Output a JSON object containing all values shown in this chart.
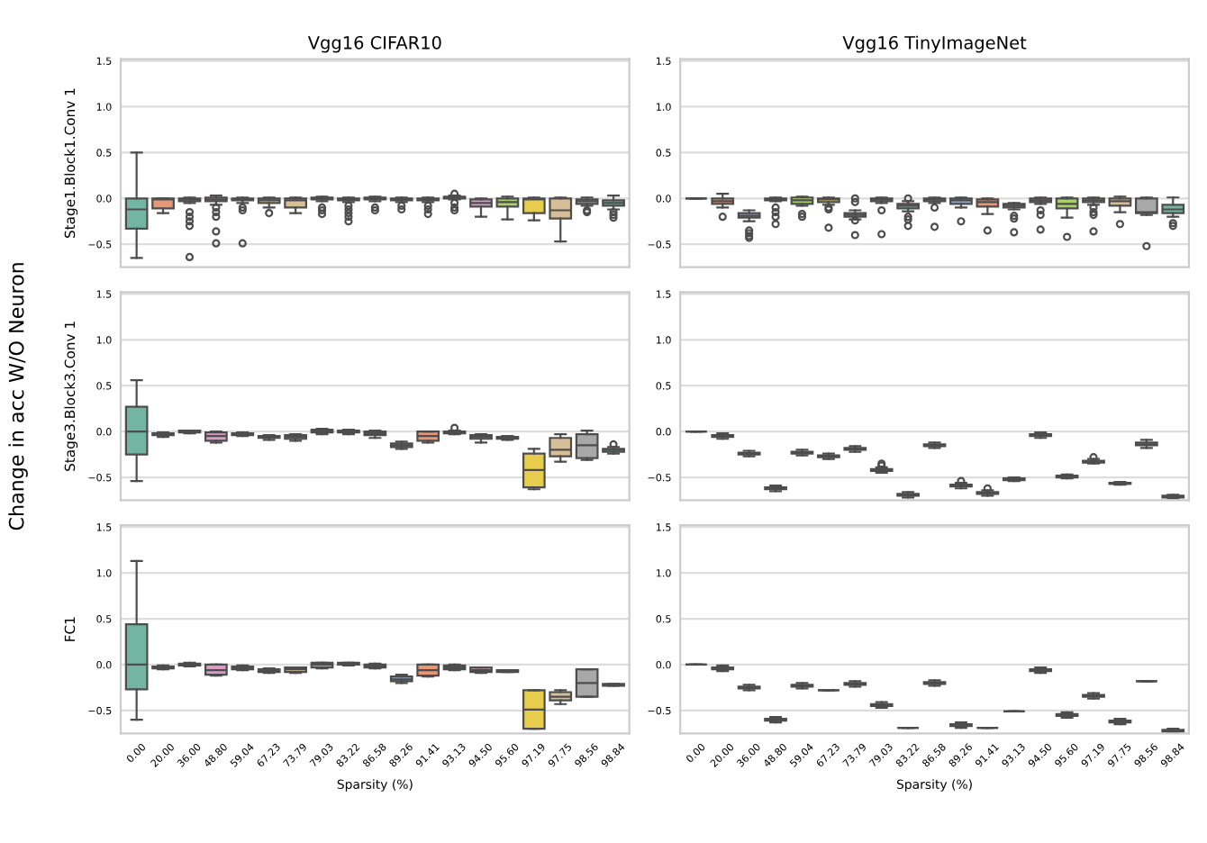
{
  "chart_data": [
    {
      "type": "box",
      "title": "Vgg16 CIFAR10",
      "ylabel": "Stage1.Block1.Conv 1",
      "annotations": [
        "Change in acc W/O Neuron"
      ],
      "tick_labels": "y",
      "grid": "y",
      "categories": [
        "0.00",
        "20.00",
        "36.00",
        "48.80",
        "59.04",
        "67.23",
        "73.79",
        "79.03",
        "83.22",
        "86.58",
        "89.26",
        "91.41",
        "93.13",
        "94.50",
        "95.60",
        "97.19",
        "97.75",
        "98.56",
        "98.84"
      ],
      "colors": [
        "#72b6a1",
        "#e99675",
        "#95a3c3",
        "#d79dc5",
        "#a9cf6a",
        "#e7cd4c",
        "#d6bf96",
        "#a8a8a8",
        "#72b6a1",
        "#e99675",
        "#95a3c3",
        "#e99675",
        "#95a3c3",
        "#d79dc5",
        "#a9cf6a",
        "#e7cd4c",
        "#d6bf96",
        "#a8a8a8",
        "#72b6a1"
      ],
      "ylim": [
        -0.75,
        1.52
      ],
      "yticks": [
        {
          "value": -0.5,
          "label": "−0.5"
        },
        {
          "value": 0,
          "label": "0.0"
        },
        {
          "value": 0.5,
          "label": "0.5"
        },
        {
          "value": 1,
          "label": "1.0"
        },
        {
          "value": 1.5,
          "label": "1.5"
        }
      ],
      "boxes": [
        {
          "low": -0.65,
          "q1": -0.33,
          "median": -0.12,
          "q3": 0,
          "high": 0.5
        },
        {
          "low": -0.16,
          "q1": -0.11,
          "median": -0.01,
          "q3": 0,
          "high": 0
        },
        {
          "low": -0.05,
          "q1": -0.03,
          "median": -0.01,
          "q3": 0,
          "high": 0.01,
          "outliers": [
            -0.15,
            -0.2,
            -0.25,
            -0.3,
            -0.64
          ]
        },
        {
          "low": -0.07,
          "q1": -0.03,
          "median": -0.01,
          "q3": 0.01,
          "high": 0.03,
          "outliers": [
            -0.1,
            -0.15,
            -0.2,
            -0.36,
            -0.49
          ]
        },
        {
          "low": -0.05,
          "q1": -0.02,
          "median": -0.01,
          "q3": 0,
          "high": 0.01,
          "outliers": [
            -0.1,
            -0.13,
            -0.49
          ]
        },
        {
          "low": -0.1,
          "q1": -0.05,
          "median": -0.02,
          "q3": 0,
          "high": 0.01,
          "outliers": [
            -0.16
          ]
        },
        {
          "low": -0.16,
          "q1": -0.1,
          "median": -0.02,
          "q3": 0,
          "high": 0.01
        },
        {
          "low": -0.03,
          "q1": -0.01,
          "median": 0,
          "q3": 0.01,
          "high": 0.02,
          "outliers": [
            -0.1,
            -0.13,
            -0.17
          ]
        },
        {
          "low": -0.04,
          "q1": -0.02,
          "median": -0.01,
          "q3": 0,
          "high": 0.01,
          "outliers": [
            -0.08,
            -0.12,
            -0.16,
            -0.2,
            -0.25
          ]
        },
        {
          "low": -0.03,
          "q1": -0.01,
          "median": 0,
          "q3": 0.01,
          "high": 0.02,
          "outliers": [
            -0.1,
            -0.13
          ]
        },
        {
          "low": -0.04,
          "q1": -0.02,
          "median": -0.01,
          "q3": 0,
          "high": 0.01,
          "outliers": [
            -0.08,
            -0.12
          ]
        },
        {
          "low": -0.04,
          "q1": -0.02,
          "median": -0.01,
          "q3": 0,
          "high": 0.01,
          "outliers": [
            -0.08,
            -0.12,
            -0.17
          ]
        },
        {
          "low": -0.01,
          "q1": 0,
          "median": 0.01,
          "q3": 0.02,
          "high": 0.03,
          "outliers": [
            0.05,
            -0.05,
            -0.1,
            -0.13
          ]
        },
        {
          "low": -0.2,
          "q1": -0.09,
          "median": -0.05,
          "q3": -0.01,
          "high": 0
        },
        {
          "low": -0.23,
          "q1": -0.09,
          "median": -0.04,
          "q3": 0,
          "high": 0.02
        },
        {
          "low": -0.24,
          "q1": -0.16,
          "median": -0.01,
          "q3": 0,
          "high": 0.01
        },
        {
          "low": -0.47,
          "q1": -0.22,
          "median": -0.13,
          "q3": 0,
          "high": 0.01
        },
        {
          "low": -0.08,
          "q1": -0.06,
          "median": -0.03,
          "q3": -0.01,
          "high": 0.01,
          "outliers": [
            -0.13,
            -0.15
          ]
        },
        {
          "low": -0.12,
          "q1": -0.08,
          "median": -0.05,
          "q3": -0.02,
          "high": 0.03,
          "outliers": [
            -0.15,
            -0.18,
            -0.21
          ]
        }
      ]
    },
    {
      "type": "box",
      "title": "Vgg16 TinyImageNet",
      "tick_labels": "y",
      "grid": "y",
      "categories": [
        "0.00",
        "20.00",
        "36.00",
        "48.80",
        "59.04",
        "67.23",
        "73.79",
        "79.03",
        "83.22",
        "86.58",
        "89.26",
        "91.41",
        "93.13",
        "94.50",
        "95.60",
        "97.19",
        "97.75",
        "98.56",
        "98.84"
      ],
      "colors": [
        "#4d4d4d",
        "#e99675",
        "#95a3c3",
        "#d79dc5",
        "#a9cf6a",
        "#e7cd4c",
        "#d6bf96",
        "#a8a8a8",
        "#72b6a1",
        "#e99675",
        "#95a3c3",
        "#e99675",
        "#95a3c3",
        "#d79dc5",
        "#a9cf6a",
        "#e7cd4c",
        "#d6bf96",
        "#a8a8a8",
        "#72b6a1"
      ],
      "ylim": [
        -0.75,
        1.52
      ],
      "yticks": [
        {
          "value": -0.5,
          "label": "−0.5"
        },
        {
          "value": 0,
          "label": "0.0"
        },
        {
          "value": 0.5,
          "label": "0.5"
        },
        {
          "value": 1,
          "label": "1.0"
        },
        {
          "value": 1.5,
          "label": "1.5"
        }
      ],
      "boxes": [
        {
          "low": 0,
          "q1": 0,
          "median": 0,
          "q3": 0,
          "high": 0
        },
        {
          "low": -0.1,
          "q1": -0.06,
          "median": -0.03,
          "q3": 0,
          "high": 0.05,
          "outliers": [
            -0.2
          ]
        },
        {
          "low": -0.25,
          "q1": -0.21,
          "median": -0.19,
          "q3": -0.16,
          "high": -0.13,
          "outliers": [
            -0.35,
            -0.38,
            -0.41,
            -0.43
          ]
        },
        {
          "low": -0.03,
          "q1": -0.02,
          "median": -0.01,
          "q3": 0,
          "high": 0.01,
          "outliers": [
            -0.1,
            -0.15,
            -0.2,
            -0.28
          ]
        },
        {
          "low": -0.08,
          "q1": -0.06,
          "median": -0.02,
          "q3": 0.01,
          "high": 0.02,
          "outliers": [
            -0.17,
            -0.2
          ]
        },
        {
          "low": -0.07,
          "q1": -0.04,
          "median": -0.01,
          "q3": 0,
          "high": 0.01,
          "outliers": [
            -0.1,
            -0.12,
            -0.32
          ]
        },
        {
          "low": -0.23,
          "q1": -0.2,
          "median": -0.18,
          "q3": -0.16,
          "high": -0.13,
          "outliers": [
            0,
            -0.04,
            -0.24,
            -0.4
          ]
        },
        {
          "low": -0.05,
          "q1": -0.03,
          "median": -0.01,
          "q3": 0,
          "high": 0.01,
          "outliers": [
            -0.13,
            -0.39
          ]
        },
        {
          "low": -0.14,
          "q1": -0.11,
          "median": -0.08,
          "q3": -0.06,
          "high": -0.03,
          "outliers": [
            0,
            -0.2,
            -0.23,
            -0.3
          ]
        },
        {
          "low": -0.05,
          "q1": -0.03,
          "median": -0.01,
          "q3": 0,
          "high": 0.01,
          "outliers": [
            -0.1,
            -0.31
          ]
        },
        {
          "low": -0.1,
          "q1": -0.06,
          "median": -0.02,
          "q3": 0,
          "high": 0.01,
          "outliers": [
            -0.25
          ]
        },
        {
          "low": -0.17,
          "q1": -0.09,
          "median": -0.04,
          "q3": -0.01,
          "high": 0,
          "outliers": [
            -0.35
          ]
        },
        {
          "low": -0.12,
          "q1": -0.1,
          "median": -0.08,
          "q3": -0.06,
          "high": -0.05,
          "outliers": [
            -0.19,
            -0.22,
            -0.37
          ]
        },
        {
          "low": -0.06,
          "q1": -0.04,
          "median": -0.02,
          "q3": 0,
          "high": 0.01,
          "outliers": [
            -0.13,
            -0.18,
            -0.34
          ]
        },
        {
          "low": -0.21,
          "q1": -0.11,
          "median": -0.06,
          "q3": 0,
          "high": 0.01,
          "outliers": [
            -0.42
          ]
        },
        {
          "low": -0.07,
          "q1": -0.04,
          "median": -0.02,
          "q3": 0,
          "high": 0.01,
          "outliers": [
            -0.1,
            -0.15,
            -0.18,
            -0.36
          ]
        },
        {
          "low": -0.15,
          "q1": -0.08,
          "median": -0.03,
          "q3": 0,
          "high": 0.02,
          "outliers": [
            -0.28
          ]
        },
        {
          "low": -0.18,
          "q1": -0.16,
          "median": -0.15,
          "q3": 0,
          "high": 0.01,
          "outliers": [
            -0.52
          ]
        },
        {
          "low": -0.2,
          "q1": -0.16,
          "median": -0.12,
          "q3": -0.07,
          "high": 0.01,
          "outliers": [
            -0.27,
            -0.3
          ]
        }
      ]
    },
    {
      "type": "box",
      "ylabel": "Stage3.Block3.Conv 1",
      "tick_labels": "y",
      "grid": "y",
      "categories": [
        "0.00",
        "20.00",
        "36.00",
        "48.80",
        "59.04",
        "67.23",
        "73.79",
        "79.03",
        "83.22",
        "86.58",
        "89.26",
        "91.41",
        "93.13",
        "94.50",
        "95.60",
        "97.19",
        "97.75",
        "98.56",
        "98.84"
      ],
      "colors": [
        "#72b6a1",
        "#e99675",
        "#95a3c3",
        "#d79dc5",
        "#a9cf6a",
        "#e7cd4c",
        "#d6bf96",
        "#a8a8a8",
        "#72b6a1",
        "#e99675",
        "#95a3c3",
        "#e99675",
        "#95a3c3",
        "#d79dc5",
        "#a9cf6a",
        "#e7cd4c",
        "#d6bf96",
        "#a8a8a8",
        "#72b6a1"
      ],
      "ylim": [
        -0.75,
        1.52
      ],
      "yticks": [
        {
          "value": -0.5,
          "label": "−0.5"
        },
        {
          "value": 0,
          "label": "0.0"
        },
        {
          "value": 0.5,
          "label": "0.5"
        },
        {
          "value": 1,
          "label": "1.0"
        },
        {
          "value": 1.5,
          "label": "1.5"
        }
      ],
      "boxes": [
        {
          "low": -0.54,
          "q1": -0.25,
          "median": 0,
          "q3": 0.27,
          "high": 0.56
        },
        {
          "low": -0.06,
          "q1": -0.04,
          "median": -0.03,
          "q3": -0.02,
          "high": -0.01
        },
        {
          "low": -0.02,
          "q1": -0.01,
          "median": 0,
          "q3": 0.01,
          "high": 0.01
        },
        {
          "low": -0.12,
          "q1": -0.1,
          "median": -0.05,
          "q3": -0.01,
          "high": 0
        },
        {
          "low": -0.05,
          "q1": -0.04,
          "median": -0.03,
          "q3": -0.02,
          "high": -0.01
        },
        {
          "low": -0.09,
          "q1": -0.07,
          "median": -0.06,
          "q3": -0.05,
          "high": -0.04
        },
        {
          "low": -0.1,
          "q1": -0.08,
          "median": -0.06,
          "q3": -0.04,
          "high": -0.03
        },
        {
          "low": -0.03,
          "q1": -0.01,
          "median": 0,
          "q3": 0.02,
          "high": 0.03
        },
        {
          "low": -0.03,
          "q1": -0.01,
          "median": 0,
          "q3": 0.01,
          "high": 0.02
        },
        {
          "low": -0.07,
          "q1": -0.04,
          "median": -0.02,
          "q3": 0,
          "high": 0.01
        },
        {
          "low": -0.19,
          "q1": -0.17,
          "median": -0.15,
          "q3": -0.13,
          "high": -0.11
        },
        {
          "low": -0.12,
          "q1": -0.1,
          "median": -0.05,
          "q3": 0,
          "high": 0
        },
        {
          "low": -0.03,
          "q1": -0.02,
          "median": -0.01,
          "q3": 0,
          "high": 0.01,
          "outliers": [
            0.04
          ]
        },
        {
          "low": -0.12,
          "q1": -0.08,
          "median": -0.06,
          "q3": -0.04,
          "high": -0.03
        },
        {
          "low": -0.09,
          "q1": -0.08,
          "median": -0.07,
          "q3": -0.06,
          "high": -0.05
        },
        {
          "low": -0.63,
          "q1": -0.61,
          "median": -0.42,
          "q3": -0.24,
          "high": -0.19
        },
        {
          "low": -0.33,
          "q1": -0.27,
          "median": -0.2,
          "q3": -0.07,
          "high": -0.03
        },
        {
          "low": -0.31,
          "q1": -0.29,
          "median": -0.15,
          "q3": -0.03,
          "high": 0.01
        },
        {
          "low": -0.24,
          "q1": -0.22,
          "median": -0.2,
          "q3": -0.19,
          "high": -0.17,
          "outliers": [
            -0.14
          ]
        }
      ]
    },
    {
      "type": "box",
      "tick_labels": "y",
      "grid": "y",
      "categories": [
        "0.00",
        "20.00",
        "36.00",
        "48.80",
        "59.04",
        "67.23",
        "73.79",
        "79.03",
        "83.22",
        "86.58",
        "89.26",
        "91.41",
        "93.13",
        "94.50",
        "95.60",
        "97.19",
        "97.75",
        "98.56",
        "98.84"
      ],
      "colors": [
        "#4d4d4d",
        "#e99675",
        "#95a3c3",
        "#d79dc5",
        "#a9cf6a",
        "#e7cd4c",
        "#d6bf96",
        "#a8a8a8",
        "#72b6a1",
        "#e99675",
        "#95a3c3",
        "#e99675",
        "#95a3c3",
        "#d79dc5",
        "#a9cf6a",
        "#e7cd4c",
        "#d6bf96",
        "#a8a8a8",
        "#72b6a1"
      ],
      "ylim": [
        -0.75,
        1.52
      ],
      "yticks": [
        {
          "value": -0.5,
          "label": "−0.5"
        },
        {
          "value": 0,
          "label": "0.0"
        },
        {
          "value": 0.5,
          "label": "0.5"
        },
        {
          "value": 1,
          "label": "1.0"
        },
        {
          "value": 1.5,
          "label": "1.5"
        }
      ],
      "boxes": [
        {
          "low": 0,
          "q1": 0,
          "median": 0,
          "q3": 0,
          "high": 0
        },
        {
          "low": -0.08,
          "q1": -0.06,
          "median": -0.05,
          "q3": -0.04,
          "high": -0.02
        },
        {
          "low": -0.27,
          "q1": -0.25,
          "median": -0.24,
          "q3": -0.23,
          "high": -0.21
        },
        {
          "low": -0.65,
          "q1": -0.63,
          "median": -0.62,
          "q3": -0.61,
          "high": -0.59
        },
        {
          "low": -0.26,
          "q1": -0.24,
          "median": -0.23,
          "q3": -0.22,
          "high": -0.2
        },
        {
          "low": -0.3,
          "q1": -0.28,
          "median": -0.27,
          "q3": -0.26,
          "high": -0.24
        },
        {
          "low": -0.22,
          "q1": -0.2,
          "median": -0.19,
          "q3": -0.18,
          "high": -0.16
        },
        {
          "low": -0.45,
          "q1": -0.43,
          "median": -0.42,
          "q3": -0.41,
          "high": -0.39,
          "outliers": [
            -0.35,
            -0.37
          ]
        },
        {
          "low": -0.72,
          "q1": -0.7,
          "median": -0.69,
          "q3": -0.68,
          "high": -0.66
        },
        {
          "low": -0.18,
          "q1": -0.16,
          "median": -0.15,
          "q3": -0.14,
          "high": -0.12
        },
        {
          "low": -0.62,
          "q1": -0.6,
          "median": -0.59,
          "q3": -0.58,
          "high": -0.56,
          "outliers": [
            -0.54
          ]
        },
        {
          "low": -0.7,
          "q1": -0.68,
          "median": -0.67,
          "q3": -0.66,
          "high": -0.64,
          "outliers": [
            -0.62
          ]
        },
        {
          "low": -0.54,
          "q1": -0.53,
          "median": -0.52,
          "q3": -0.51,
          "high": -0.5
        },
        {
          "low": -0.07,
          "q1": -0.05,
          "median": -0.04,
          "q3": -0.03,
          "high": -0.01
        },
        {
          "low": -0.51,
          "q1": -0.5,
          "median": -0.49,
          "q3": -0.48,
          "high": -0.47
        },
        {
          "low": -0.35,
          "q1": -0.34,
          "median": -0.33,
          "q3": -0.32,
          "high": -0.3,
          "outliers": [
            -0.28
          ]
        },
        {
          "low": -0.58,
          "q1": -0.57,
          "median": -0.57,
          "q3": -0.56,
          "high": -0.55
        },
        {
          "low": -0.18,
          "q1": -0.15,
          "median": -0.14,
          "q3": -0.12,
          "high": -0.09
        },
        {
          "low": -0.73,
          "q1": -0.72,
          "median": -0.71,
          "q3": -0.7,
          "high": -0.69
        }
      ]
    },
    {
      "type": "box",
      "ylabel": "FC1",
      "xlabel": "Sparsity (%)",
      "grid": "y",
      "categories": [
        "0.00",
        "20.00",
        "36.00",
        "48.80",
        "59.04",
        "67.23",
        "73.79",
        "79.03",
        "83.22",
        "86.58",
        "89.26",
        "91.41",
        "93.13",
        "94.50",
        "95.60",
        "97.19",
        "97.75",
        "98.56",
        "98.84"
      ],
      "colors": [
        "#72b6a1",
        "#e99675",
        "#95a3c3",
        "#d79dc5",
        "#a9cf6a",
        "#e7cd4c",
        "#d6bf96",
        "#a8a8a8",
        "#72b6a1",
        "#e99675",
        "#95a3c3",
        "#e99675",
        "#95a3c3",
        "#d79dc5",
        "#a9cf6a",
        "#e7cd4c",
        "#d6bf96",
        "#a8a8a8",
        "#72b6a1"
      ],
      "ylim": [
        -0.75,
        1.52
      ],
      "yticks": [
        {
          "value": -0.5,
          "label": "−0.5"
        },
        {
          "value": 0,
          "label": "0.0"
        },
        {
          "value": 0.5,
          "label": "0.5"
        },
        {
          "value": 1,
          "label": "1.0"
        },
        {
          "value": 1.5,
          "label": "1.5"
        }
      ],
      "boxes": [
        {
          "low": -0.6,
          "q1": -0.27,
          "median": 0,
          "q3": 0.44,
          "high": 1.13
        },
        {
          "low": -0.05,
          "q1": -0.04,
          "median": -0.03,
          "q3": -0.02,
          "high": -0.01
        },
        {
          "low": -0.02,
          "q1": -0.01,
          "median": 0,
          "q3": 0.01,
          "high": 0.02
        },
        {
          "low": -0.12,
          "q1": -0.11,
          "median": -0.06,
          "q3": 0,
          "high": 0
        },
        {
          "low": -0.06,
          "q1": -0.05,
          "median": -0.04,
          "q3": -0.02,
          "high": -0.01
        },
        {
          "low": -0.09,
          "q1": -0.08,
          "median": -0.06,
          "q3": -0.05,
          "high": -0.04
        },
        {
          "low": -0.09,
          "q1": -0.08,
          "median": -0.05,
          "q3": -0.03,
          "high": -0.03
        },
        {
          "low": -0.04,
          "q1": -0.03,
          "median": 0,
          "q3": 0.02,
          "high": 0.02
        },
        {
          "low": -0.01,
          "q1": 0,
          "median": 0.01,
          "q3": 0.02,
          "high": 0.02
        },
        {
          "low": -0.04,
          "q1": -0.03,
          "median": -0.01,
          "q3": 0,
          "high": 0.01
        },
        {
          "low": -0.2,
          "q1": -0.18,
          "median": -0.16,
          "q3": -0.13,
          "high": -0.11
        },
        {
          "low": -0.13,
          "q1": -0.12,
          "median": -0.06,
          "q3": 0,
          "high": 0
        },
        {
          "low": -0.06,
          "q1": -0.05,
          "median": -0.03,
          "q3": -0.01,
          "high": 0
        },
        {
          "low": -0.09,
          "q1": -0.08,
          "median": -0.06,
          "q3": -0.03,
          "high": -0.03
        },
        {
          "low": -0.08,
          "q1": -0.08,
          "median": -0.07,
          "q3": -0.06,
          "high": -0.06
        },
        {
          "low": -0.7,
          "q1": -0.7,
          "median": -0.49,
          "q3": -0.28,
          "high": -0.28
        },
        {
          "low": -0.43,
          "q1": -0.39,
          "median": -0.35,
          "q3": -0.3,
          "high": -0.28
        },
        {
          "low": -0.35,
          "q1": -0.35,
          "median": -0.2,
          "q3": -0.05,
          "high": -0.05
        },
        {
          "low": -0.23,
          "q1": -0.23,
          "median": -0.22,
          "q3": -0.21,
          "high": -0.21
        }
      ]
    },
    {
      "type": "box",
      "xlabel": "Sparsity (%)",
      "grid": "y",
      "categories": [
        "0.00",
        "20.00",
        "36.00",
        "48.80",
        "59.04",
        "67.23",
        "73.79",
        "79.03",
        "83.22",
        "86.58",
        "89.26",
        "91.41",
        "93.13",
        "94.50",
        "95.60",
        "97.19",
        "97.75",
        "98.56",
        "98.84"
      ],
      "colors": [
        "#4d4d4d",
        "#e99675",
        "#95a3c3",
        "#d79dc5",
        "#a9cf6a",
        "#4d4d4d",
        "#d6bf96",
        "#a8a8a8",
        "#4d4d4d",
        "#e99675",
        "#95a3c3",
        "#4d4d4d",
        "#4d4d4d",
        "#d79dc5",
        "#a9cf6a",
        "#e7cd4c",
        "#d6bf96",
        "#4d4d4d",
        "#72b6a1"
      ],
      "ylim": [
        -0.75,
        1.52
      ],
      "yticks": [
        {
          "value": -0.5,
          "label": "−0.5"
        },
        {
          "value": 0,
          "label": "0.0"
        },
        {
          "value": 0.5,
          "label": "0.5"
        },
        {
          "value": 1,
          "label": "1.0"
        },
        {
          "value": 1.5,
          "label": "1.5"
        }
      ],
      "boxes": [
        {
          "low": 0,
          "q1": 0,
          "median": 0,
          "q3": 0,
          "high": 0
        },
        {
          "low": -0.07,
          "q1": -0.05,
          "median": -0.04,
          "q3": -0.03,
          "high": -0.01
        },
        {
          "low": -0.28,
          "q1": -0.26,
          "median": -0.25,
          "q3": -0.24,
          "high": -0.22
        },
        {
          "low": -0.63,
          "q1": -0.61,
          "median": -0.6,
          "q3": -0.59,
          "high": -0.57
        },
        {
          "low": -0.26,
          "q1": -0.24,
          "median": -0.23,
          "q3": -0.22,
          "high": -0.2
        },
        {
          "low": -0.28,
          "q1": -0.28,
          "median": -0.28,
          "q3": -0.28,
          "high": -0.28
        },
        {
          "low": -0.24,
          "q1": -0.22,
          "median": -0.21,
          "q3": -0.2,
          "high": -0.18
        },
        {
          "low": -0.47,
          "q1": -0.45,
          "median": -0.44,
          "q3": -0.43,
          "high": -0.41
        },
        {
          "low": -0.69,
          "q1": -0.69,
          "median": -0.69,
          "q3": -0.69,
          "high": -0.69
        },
        {
          "low": -0.23,
          "q1": -0.21,
          "median": -0.2,
          "q3": -0.19,
          "high": -0.17
        },
        {
          "low": -0.69,
          "q1": -0.67,
          "median": -0.66,
          "q3": -0.65,
          "high": -0.63
        },
        {
          "low": -0.69,
          "q1": -0.69,
          "median": -0.69,
          "q3": -0.69,
          "high": -0.69
        },
        {
          "low": -0.51,
          "q1": -0.51,
          "median": -0.51,
          "q3": -0.51,
          "high": -0.51
        },
        {
          "low": -0.09,
          "q1": -0.07,
          "median": -0.06,
          "q3": -0.05,
          "high": -0.03
        },
        {
          "low": -0.58,
          "q1": -0.56,
          "median": -0.55,
          "q3": -0.54,
          "high": -0.52
        },
        {
          "low": -0.37,
          "q1": -0.35,
          "median": -0.34,
          "q3": -0.33,
          "high": -0.31
        },
        {
          "low": -0.65,
          "q1": -0.63,
          "median": -0.62,
          "q3": -0.61,
          "high": -0.59
        },
        {
          "low": -0.18,
          "q1": -0.18,
          "median": -0.18,
          "q3": -0.18,
          "high": -0.18
        },
        {
          "low": -0.74,
          "q1": -0.73,
          "median": -0.72,
          "q3": -0.71,
          "high": -0.7
        }
      ]
    }
  ]
}
